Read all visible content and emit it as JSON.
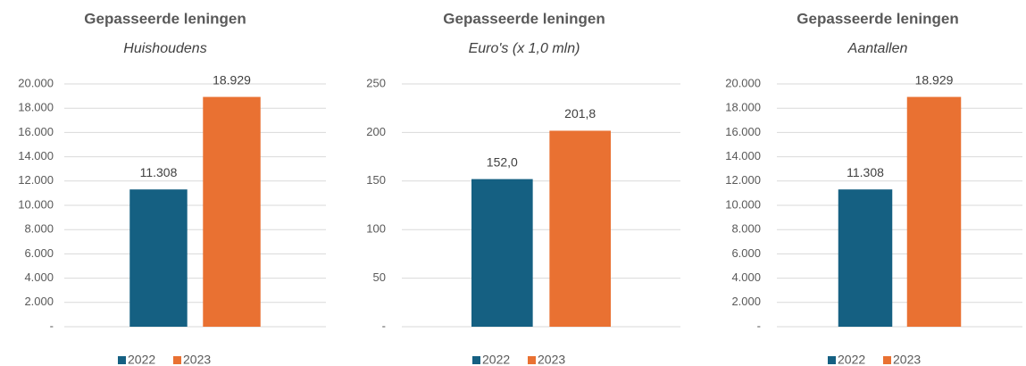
{
  "chart_data": [
    {
      "type": "bar",
      "title": "Gepasseerde leningen",
      "subtitle": "Huishoudens",
      "series": [
        {
          "name": "2022",
          "color": "#156082",
          "values": [
            11308
          ],
          "value_labels": [
            "11.308"
          ]
        },
        {
          "name": "2023",
          "color": "#e97132",
          "values": [
            18929
          ],
          "value_labels": [
            "18.929"
          ]
        }
      ],
      "ylim": [
        0,
        20000
      ],
      "yticks": [
        {
          "value": 0,
          "label": "-"
        },
        {
          "value": 2000,
          "label": "2.000"
        },
        {
          "value": 4000,
          "label": "4.000"
        },
        {
          "value": 6000,
          "label": "6.000"
        },
        {
          "value": 8000,
          "label": "8.000"
        },
        {
          "value": 10000,
          "label": "10.000"
        },
        {
          "value": 12000,
          "label": "12.000"
        },
        {
          "value": 14000,
          "label": "14.000"
        },
        {
          "value": 16000,
          "label": "16.000"
        },
        {
          "value": 18000,
          "label": "18.000"
        },
        {
          "value": 20000,
          "label": "20.000"
        }
      ],
      "grid": true,
      "legend": "bottom"
    },
    {
      "type": "bar",
      "title": "Gepasseerde leningen",
      "subtitle": "Euro's (x 1,0 mln)",
      "series": [
        {
          "name": "2022",
          "color": "#156082",
          "values": [
            152.0
          ],
          "value_labels": [
            "152,0"
          ]
        },
        {
          "name": "2023",
          "color": "#e97132",
          "values": [
            201.8
          ],
          "value_labels": [
            "201,8"
          ]
        }
      ],
      "ylim": [
        0,
        250
      ],
      "yticks": [
        {
          "value": 0,
          "label": "-"
        },
        50,
        100,
        150,
        200,
        250
      ],
      "grid": true,
      "legend": "bottom"
    },
    {
      "type": "bar",
      "title": "Gepasseerde leningen",
      "subtitle": "Aantallen",
      "series": [
        {
          "name": "2022",
          "color": "#156082",
          "values": [
            11308
          ],
          "value_labels": [
            "11.308"
          ]
        },
        {
          "name": "2023",
          "color": "#e97132",
          "values": [
            18929
          ],
          "value_labels": [
            "18.929"
          ]
        }
      ],
      "ylim": [
        0,
        20000
      ],
      "yticks": [
        {
          "value": 0,
          "label": "-"
        },
        {
          "value": 2000,
          "label": "2.000"
        },
        {
          "value": 4000,
          "label": "4.000"
        },
        {
          "value": 6000,
          "label": "6.000"
        },
        {
          "value": 8000,
          "label": "8.000"
        },
        {
          "value": 10000,
          "label": "10.000"
        },
        {
          "value": 12000,
          "label": "12.000"
        },
        {
          "value": 14000,
          "label": "14.000"
        },
        {
          "value": 16000,
          "label": "16.000"
        },
        {
          "value": 18000,
          "label": "18.000"
        },
        {
          "value": 20000,
          "label": "20.000"
        }
      ],
      "grid": true,
      "legend": "bottom"
    }
  ]
}
